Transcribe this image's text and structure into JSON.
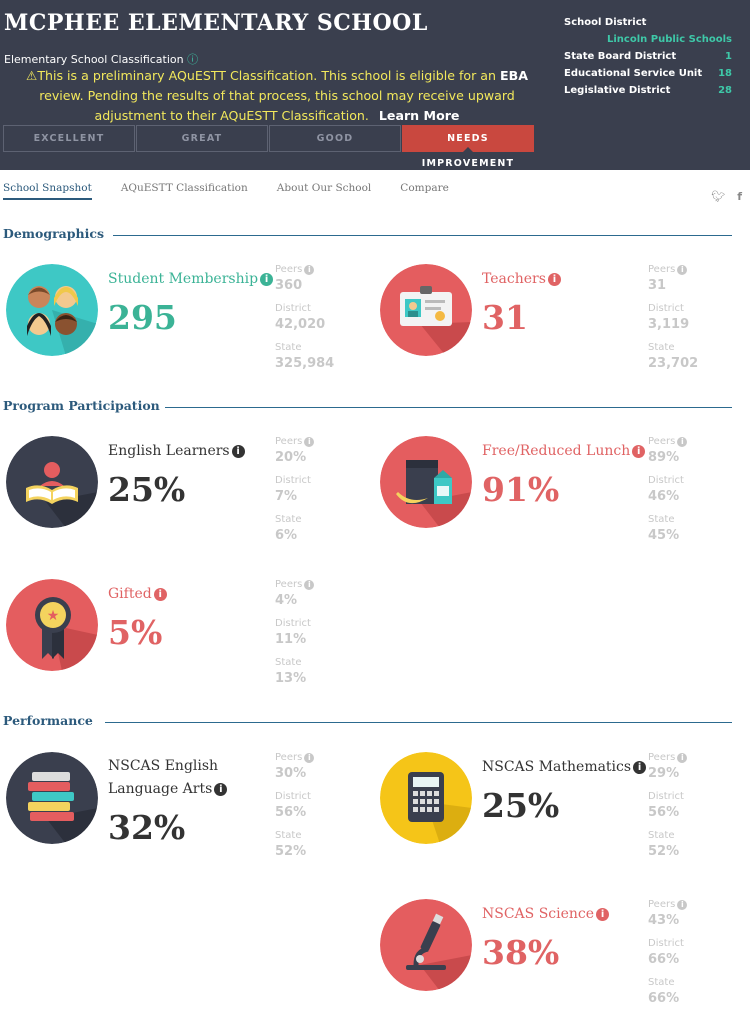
{
  "header": {
    "school_name": "MCPHEE ELEMENTARY SCHOOL",
    "classification_label": "Elementary School Classification",
    "notice_part1": "This is a preliminary AQuESTT Classification. This school is eligible for an ",
    "notice_eba": "EBA",
    "notice_part2": " review. Pending the results of that process, this school may receive upward adjustment to their AQuESTT Classification.",
    "learn_more": "Learn More",
    "tiers": [
      "EXCELLENT",
      "GREAT",
      "GOOD",
      "NEEDS IMPROVEMENT"
    ],
    "active_tier": "NEEDS IMPROVEMENT",
    "meta": {
      "school_district_label": "School District",
      "school_district_value": "Lincoln Public Schools",
      "state_board_label": "State Board District",
      "state_board_value": "1",
      "esu_label": "Educational Service Unit",
      "esu_value": "18",
      "legislative_label": "Legislative District",
      "legislative_value": "28"
    }
  },
  "tabs": [
    "School Snapshot",
    "AQuESTT Classification",
    "About Our School",
    "Compare"
  ],
  "active_tab": "School Snapshot",
  "sections": {
    "demographics": "Demographics",
    "program": "Program Participation",
    "performance": "Performance"
  },
  "compare_labels": {
    "peers": "Peers",
    "district": "District",
    "state": "State"
  },
  "stats": {
    "membership": {
      "label": "Student Membership",
      "value": "295",
      "peers": "360",
      "district": "42,020",
      "state": "325,984"
    },
    "teachers": {
      "label": "Teachers",
      "value": "31",
      "peers": "31",
      "district": "3,119",
      "state": "23,702"
    },
    "english_learners": {
      "label": "English Learners",
      "value": "25%",
      "peers": "20%",
      "district": "7%",
      "state": "6%"
    },
    "free_lunch": {
      "label": "Free/Reduced Lunch",
      "value": "91%",
      "peers": "89%",
      "district": "46%",
      "state": "45%"
    },
    "gifted": {
      "label": "Gifted",
      "value": "5%",
      "peers": "4%",
      "district": "11%",
      "state": "13%"
    },
    "ela": {
      "label_line1": "NSCAS English",
      "label_line2": "Language Arts",
      "value": "32%",
      "peers": "30%",
      "district": "56%",
      "state": "52%"
    },
    "math": {
      "label": "NSCAS Mathematics",
      "value": "25%",
      "peers": "29%",
      "district": "56%",
      "state": "52%"
    },
    "science": {
      "label": "NSCAS Science",
      "value": "38%",
      "peers": "43%",
      "district": "66%",
      "state": "66%"
    }
  },
  "colors": {
    "header_bg": "#3a3f4e",
    "teal": "#3bb396",
    "red": "#e06364",
    "navy": "#2c5a7c",
    "needs_improvement": "#c9483f",
    "notice_yellow": "#f2e85c"
  }
}
